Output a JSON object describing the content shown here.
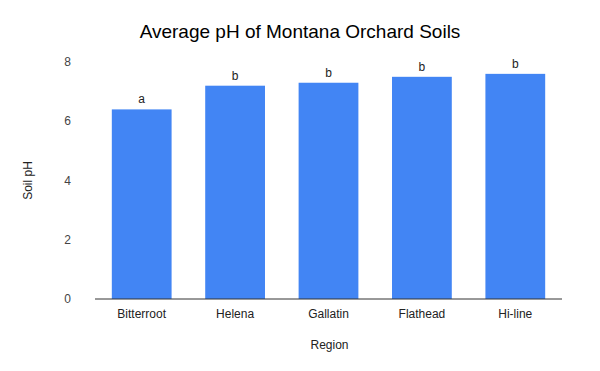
{
  "chart_data": {
    "type": "bar",
    "title": "Average pH of Montana Orchard Soils",
    "x_label": "Region",
    "y_label": "Soil pH",
    "categories": [
      "Bitterroot",
      "Helena",
      "Gallatin",
      "Flathead",
      "Hi-line"
    ],
    "values": [
      6.4,
      7.2,
      7.3,
      7.5,
      7.6
    ],
    "annotations": [
      "a",
      "b",
      "b",
      "b",
      "b"
    ],
    "color": "#4285f4",
    "ylim": [
      0,
      8
    ],
    "yticks": [
      0,
      2,
      4,
      6,
      8
    ],
    "grid": false
  }
}
